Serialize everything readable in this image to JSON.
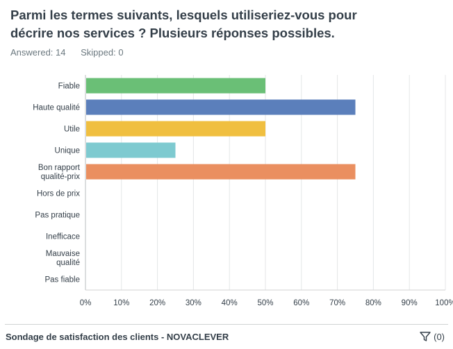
{
  "question": {
    "title": "Parmi les termes suivants, lesquels utiliseriez-vous pour décrire nos services ? Plusieurs réponses possibles.",
    "answered": "Answered: 14",
    "skipped": "Skipped: 0"
  },
  "chart_data": {
    "type": "bar",
    "orientation": "horizontal",
    "categories": [
      [
        "Fiable"
      ],
      [
        "Haute qualité"
      ],
      [
        "Utile"
      ],
      [
        "Unique"
      ],
      [
        "Bon rapport",
        "qualité-prix"
      ],
      [
        "Hors de prix"
      ],
      [
        "Pas pratique"
      ],
      [
        "Inefficace"
      ],
      [
        "Mauvaise",
        "qualité"
      ],
      [
        "Pas fiable"
      ]
    ],
    "values": [
      50,
      75,
      50,
      25,
      75,
      0,
      0,
      0,
      0,
      0
    ],
    "colors": [
      "#6abf76",
      "#5b7fbb",
      "#f0bf40",
      "#7ecad0",
      "#ea8f60",
      "#b3b3b3",
      "#b3b3b3",
      "#b3b3b3",
      "#b3b3b3",
      "#b3b3b3"
    ],
    "xlim": [
      0,
      100
    ],
    "xticks": [
      "0%",
      "10%",
      "20%",
      "30%",
      "40%",
      "50%",
      "60%",
      "70%",
      "80%",
      "90%",
      "100%"
    ],
    "grid": true
  },
  "footer": {
    "survey_title": "Sondage de satisfaction des clients - NOVACLEVER",
    "filter_count": "(0)",
    "filter_icon": "filter-icon"
  }
}
